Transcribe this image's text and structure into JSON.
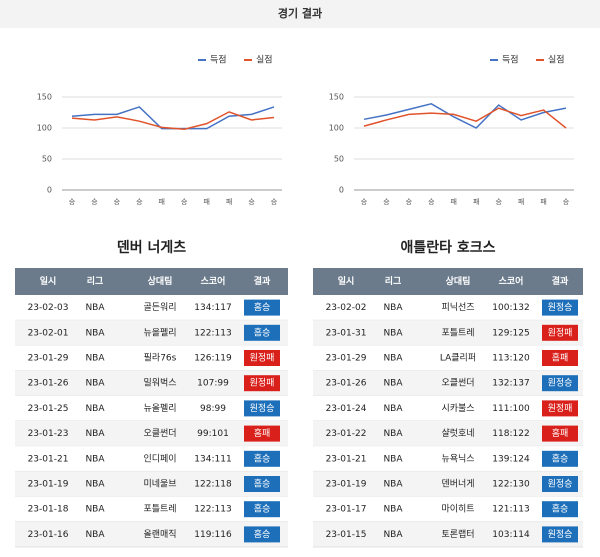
{
  "header": {
    "title": "경기 결과"
  },
  "chart_data": [
    {
      "type": "line",
      "categories": [
        "승",
        "승",
        "승",
        "승",
        "패",
        "승",
        "패",
        "패",
        "승",
        "승"
      ],
      "series": [
        {
          "name": "득점",
          "color": "#4472c4",
          "values": [
            119,
            122,
            122,
            134,
            99,
            99,
            99,
            119,
            122,
            134
          ]
        },
        {
          "name": "실점",
          "color": "#e0532b",
          "values": [
            116,
            113,
            118,
            111,
            101,
            98,
            107,
            126,
            113,
            117
          ]
        }
      ],
      "ylim": [
        0,
        150
      ],
      "yticks": [
        0,
        50,
        100,
        150
      ],
      "grid": true,
      "legend": "top-right"
    },
    {
      "type": "line",
      "categories": [
        "승",
        "승",
        "승",
        "승",
        "패",
        "패",
        "승",
        "패",
        "패",
        "승"
      ],
      "series": [
        {
          "name": "득점",
          "color": "#4472c4",
          "values": [
            114,
            121,
            130,
            139,
            118,
            100,
            137,
            113,
            125,
            132
          ]
        },
        {
          "name": "실점",
          "color": "#e0532b",
          "values": [
            103,
            113,
            122,
            124,
            122,
            111,
            132,
            120,
            129,
            100
          ]
        }
      ],
      "ylim": [
        0,
        150
      ],
      "yticks": [
        0,
        50,
        100,
        150
      ],
      "grid": true,
      "legend": "top-right"
    }
  ],
  "tables": [
    {
      "team": "덴버 너게츠",
      "headers": [
        "일시",
        "리그",
        "상대팀",
        "스코어",
        "결과"
      ],
      "rows": [
        [
          "23-02-03",
          "NBA",
          "골든워리",
          "134:117",
          "홈승"
        ],
        [
          "23-02-01",
          "NBA",
          "뉴올펠리",
          "122:113",
          "홈승"
        ],
        [
          "23-01-29",
          "NBA",
          "필라76s",
          "126:119",
          "원정패"
        ],
        [
          "23-01-26",
          "NBA",
          "밀워벅스",
          "107:99",
          "원정패"
        ],
        [
          "23-01-25",
          "NBA",
          "뉴올펠리",
          "98:99",
          "원정승"
        ],
        [
          "23-01-23",
          "NBA",
          "오클썬더",
          "99:101",
          "홈패"
        ],
        [
          "23-01-21",
          "NBA",
          "인디페이",
          "134:111",
          "홈승"
        ],
        [
          "23-01-19",
          "NBA",
          "미네울브",
          "122:118",
          "홈승"
        ],
        [
          "23-01-18",
          "NBA",
          "포틀트레",
          "122:113",
          "홈승"
        ],
        [
          "23-01-16",
          "NBA",
          "올랜매직",
          "119:116",
          "홈승"
        ]
      ]
    },
    {
      "team": "애틀란타 호크스",
      "headers": [
        "일시",
        "리그",
        "상대팀",
        "스코어",
        "결과"
      ],
      "rows": [
        [
          "23-02-02",
          "NBA",
          "피닉선즈",
          "100:132",
          "원정승"
        ],
        [
          "23-01-31",
          "NBA",
          "포틀트레",
          "129:125",
          "원정패"
        ],
        [
          "23-01-29",
          "NBA",
          "LA클리퍼",
          "113:120",
          "홈패"
        ],
        [
          "23-01-26",
          "NBA",
          "오클썬더",
          "132:137",
          "원정승"
        ],
        [
          "23-01-24",
          "NBA",
          "시카불스",
          "111:100",
          "원정패"
        ],
        [
          "23-01-22",
          "NBA",
          "샬럿호네",
          "118:122",
          "홈패"
        ],
        [
          "23-01-21",
          "NBA",
          "뉴욕닉스",
          "139:124",
          "홈승"
        ],
        [
          "23-01-19",
          "NBA",
          "덴버너게",
          "122:130",
          "원정승"
        ],
        [
          "23-01-17",
          "NBA",
          "마이히트",
          "121:113",
          "홈승"
        ],
        [
          "23-01-15",
          "NBA",
          "토론랩터",
          "103:114",
          "원정승"
        ]
      ]
    }
  ]
}
